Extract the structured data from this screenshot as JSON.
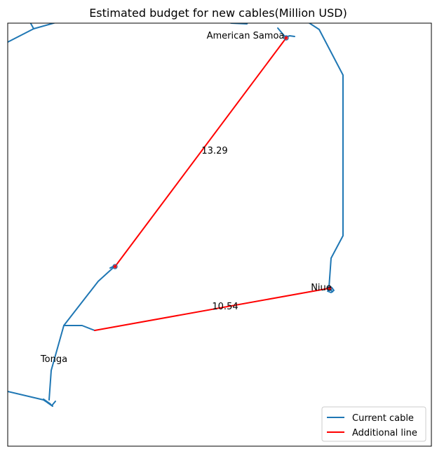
{
  "title": "Estimated budget for new cables(Million USD)",
  "colors": {
    "current_cable": "#1f77b4",
    "additional_line": "#ff0000",
    "frame": "#000000",
    "background": "#ffffff",
    "legend_border": "#cccccc"
  },
  "places": {
    "american_samoa": "American Samoa",
    "niue": "Niue",
    "tonga": "Tonga"
  },
  "budget_labels": {
    "samoa_line": "13.29",
    "niue_line": "10.54"
  },
  "legend": {
    "placement": "bottom-right",
    "current_cable": "Current cable",
    "additional_line": "Additional line"
  }
}
